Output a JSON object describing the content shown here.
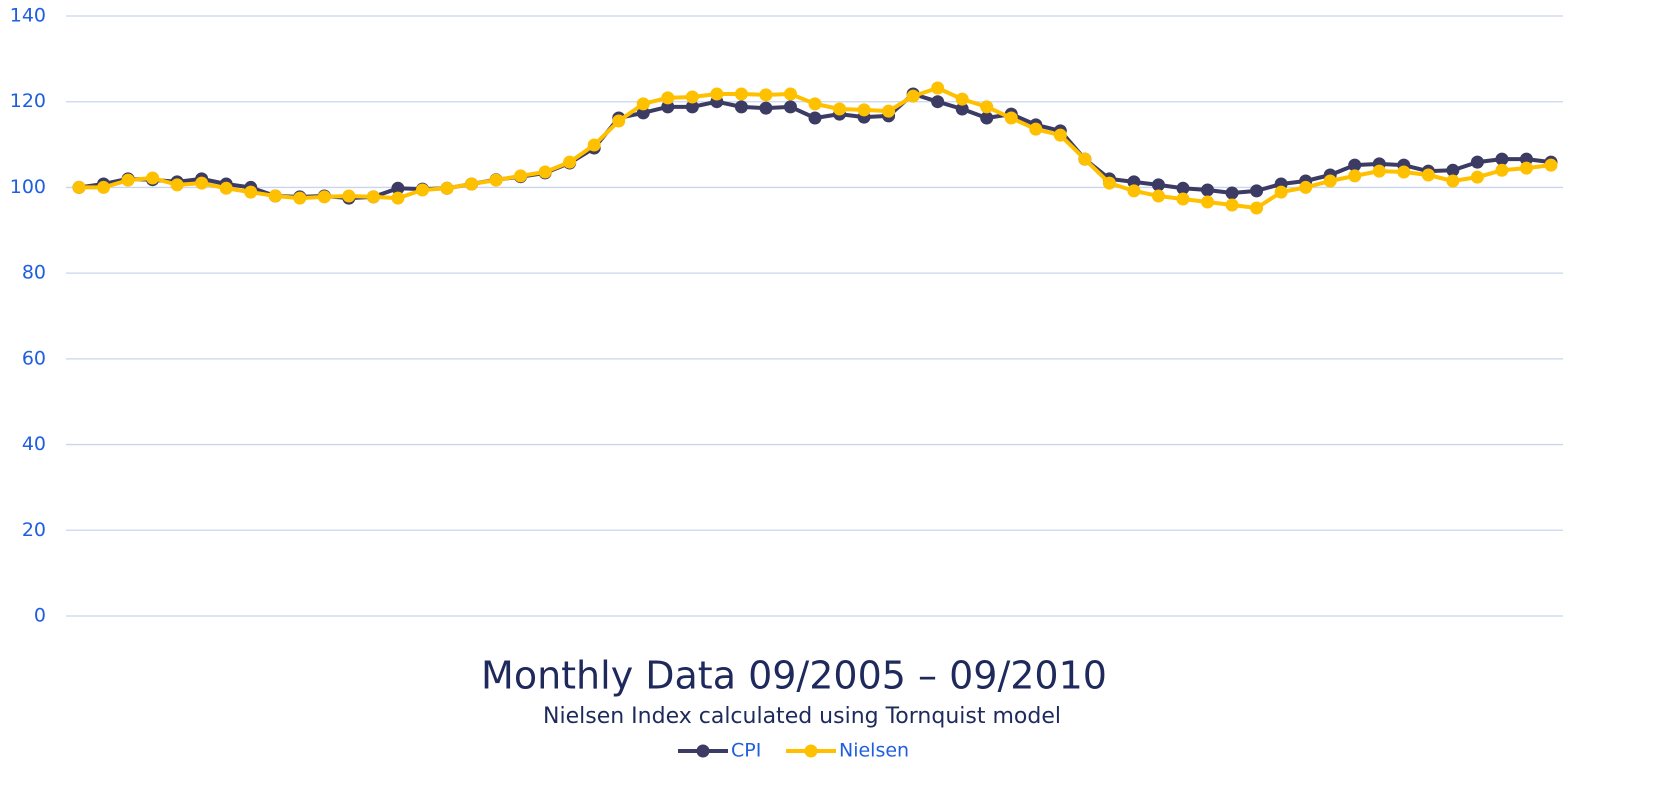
{
  "chart_data": {
    "type": "line",
    "title": "Monthly Data 09/2005 – 09/2010",
    "subtitle": "Nielsen Index calculated using Tornquist model",
    "ylim": [
      0,
      140
    ],
    "yticks": [
      0,
      20,
      40,
      60,
      80,
      100,
      120,
      140
    ],
    "grid": true,
    "legend": "bottom",
    "series": [
      {
        "name": "CPI",
        "color": "#3b3b63",
        "values": [
          100,
          100.8,
          102,
          101.8,
          101.3,
          102,
          100.8,
          100,
          98,
          97.8,
          98,
          97.5,
          97.8,
          99.8,
          99.6,
          99.8,
          100.8,
          101.8,
          102.5,
          103.4,
          105.7,
          109.2,
          116.2,
          117.4,
          118.8,
          118.8,
          120,
          118.8,
          118.5,
          118.8,
          116.2,
          117.1,
          116.4,
          116.7,
          121.8,
          120,
          118.3,
          116.2,
          117.1,
          114.6,
          113.2,
          106.6,
          102,
          101.3,
          100.6,
          99.8,
          99.4,
          98.7,
          99.2,
          100.8,
          101.5,
          102.9,
          105.2,
          105.5,
          105.2,
          103.8,
          104,
          105.9,
          106.6,
          106.6,
          105.9
        ]
      },
      {
        "name": "Nielsen",
        "color": "#ffc000",
        "values": [
          100,
          100,
          101.7,
          102.2,
          100.6,
          101,
          99.8,
          98.9,
          98,
          97.5,
          97.8,
          98,
          97.8,
          97.5,
          99.4,
          99.8,
          100.8,
          101.7,
          102.7,
          103.6,
          105.9,
          109.9,
          115.5,
          119.5,
          120.9,
          121.1,
          121.8,
          121.8,
          121.6,
          121.8,
          119.5,
          118.3,
          118.1,
          117.8,
          121.3,
          123.2,
          120.6,
          118.8,
          116.2,
          113.6,
          112.2,
          106.6,
          101,
          99.2,
          98,
          97.3,
          96.6,
          95.9,
          95.2,
          98.9,
          100,
          101.5,
          102.7,
          103.8,
          103.6,
          102.9,
          101.5,
          102.4,
          104,
          104.5,
          105.2
        ]
      }
    ]
  }
}
